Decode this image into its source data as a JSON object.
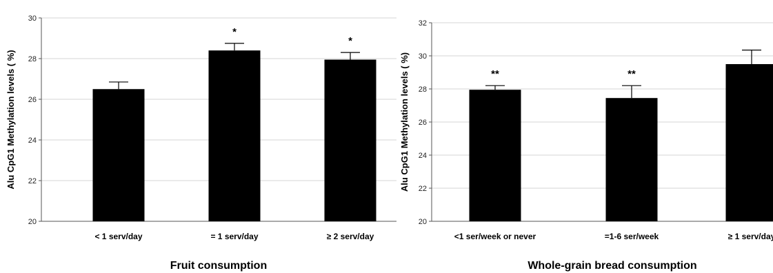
{
  "chart_data": [
    {
      "type": "bar",
      "categories": [
        "< 1 serv/day",
        "= 1 serv/day",
        "≥ 2 serv/day"
      ],
      "values": [
        26.5,
        28.4,
        27.95
      ],
      "error_upper": [
        26.85,
        28.75,
        28.3
      ],
      "annotations": [
        "",
        "*",
        "*"
      ],
      "ylim": [
        20,
        30
      ],
      "yticks": [
        20,
        22,
        24,
        26,
        28,
        30
      ],
      "ylabel": "Alu CpG1 Methylation levels ( %)",
      "xlabel": "Fruit consumption",
      "bar_color": "#000000",
      "grid": true
    },
    {
      "type": "bar",
      "categories": [
        "<1 ser/week or never",
        "=1-6 ser/week",
        "≥ 1 serv/day"
      ],
      "values": [
        27.95,
        27.45,
        29.5
      ],
      "error_upper": [
        28.2,
        28.2,
        30.35
      ],
      "annotations": [
        "**",
        "**",
        ""
      ],
      "ylim": [
        20,
        32
      ],
      "yticks": [
        20,
        22,
        24,
        26,
        28,
        30,
        32
      ],
      "ylabel": "Alu CpG1 Methylation levels ( %)",
      "xlabel": "Whole-grain bread consumption",
      "bar_color": "#000000",
      "grid": true
    }
  ]
}
